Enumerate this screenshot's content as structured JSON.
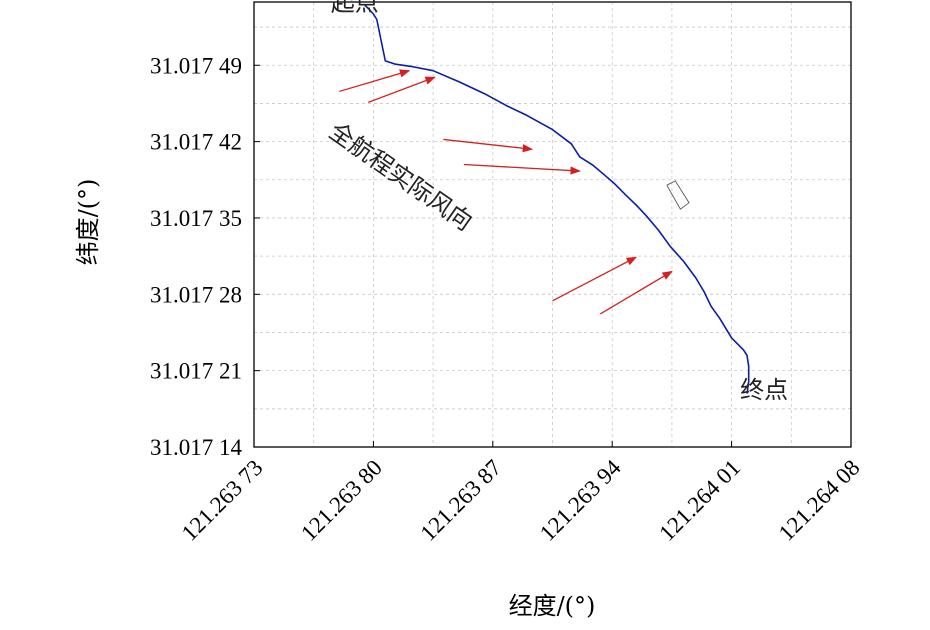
{
  "chart_data": {
    "type": "line",
    "title": "",
    "xlabel": "经度/(°)",
    "ylabel": "纬度/(°)",
    "x_ticks": [
      {
        "value": 121.26373,
        "label": "121.263 73"
      },
      {
        "value": 121.2638,
        "label": "121.263 80"
      },
      {
        "value": 121.26387,
        "label": "121.263 87"
      },
      {
        "value": 121.26394,
        "label": "121.263 94"
      },
      {
        "value": 121.26401,
        "label": "121.264 01"
      },
      {
        "value": 121.26408,
        "label": "121.264 08"
      }
    ],
    "y_ticks": [
      {
        "value": 31.01714,
        "label": "31.017 14"
      },
      {
        "value": 31.01721,
        "label": "31.017 21"
      },
      {
        "value": 31.01728,
        "label": "31.017 28"
      },
      {
        "value": 31.01735,
        "label": "31.017 35"
      },
      {
        "value": 31.01742,
        "label": "31.017 42"
      },
      {
        "value": 31.01749,
        "label": "31.017 49"
      }
    ],
    "xlim": [
      121.26373,
      121.26408
    ],
    "ylim": [
      31.01714,
      31.017548
    ],
    "grid": true,
    "series": [
      {
        "color": "#0a1ea8",
        "x": [
          121.263795,
          121.263797,
          121.2638,
          121.263802,
          121.263807,
          121.263813,
          121.263822,
          121.263835,
          121.26385,
          121.263865,
          121.263878,
          121.26389,
          121.263905,
          121.263916,
          121.263921,
          121.263925,
          121.263929,
          121.263935,
          121.263941,
          121.263948,
          121.263954,
          121.26396,
          121.263967,
          121.263974,
          121.263982,
          121.263989,
          121.263994,
          121.263998,
          121.264003,
          121.26401,
          121.264017,
          121.264019,
          121.26402,
          121.26402,
          121.264019
        ],
        "y": [
          31.017545,
          31.017542,
          31.017537,
          31.017532,
          31.017494,
          31.017491,
          31.017489,
          31.017485,
          31.017475,
          31.017464,
          31.017453,
          31.017444,
          31.017431,
          31.017418,
          31.017406,
          31.017402,
          31.017398,
          31.01739,
          31.017382,
          31.017371,
          31.017362,
          31.017352,
          31.017339,
          31.017324,
          31.01731,
          31.017295,
          31.017282,
          31.017269,
          31.017258,
          31.01724,
          31.017229,
          31.017224,
          31.017214,
          31.0172,
          31.017189
        ]
      }
    ],
    "wind_arrows": {
      "color": "#d62020",
      "segments": [
        {
          "x1": 121.26378,
          "y1": 31.017466,
          "x2": 121.263821,
          "y2": 31.017485
        },
        {
          "x1": 121.263797,
          "y1": 31.017456,
          "x2": 121.263836,
          "y2": 31.017479
        },
        {
          "x1": 121.263841,
          "y1": 31.017422,
          "x2": 121.263893,
          "y2": 31.017413
        },
        {
          "x1": 121.263853,
          "y1": 31.017399,
          "x2": 121.263921,
          "y2": 31.017393
        },
        {
          "x1": 121.263905,
          "y1": 31.017274,
          "x2": 121.263954,
          "y2": 31.017314
        },
        {
          "x1": 121.263933,
          "y1": 31.017262,
          "x2": 121.263975,
          "y2": 31.017301
        }
      ]
    },
    "annotations": [
      {
        "text": "起点",
        "x": 121.263775,
        "y": 31.01754
      },
      {
        "text": "终点",
        "x": 121.264015,
        "y": 31.017185
      },
      {
        "text": "全航程实际风向",
        "x": 121.263773,
        "y": 31.017426
      }
    ],
    "ship_outline": {
      "color": "#555555",
      "x": [
        121.263972,
        121.263977,
        121.263985,
        121.26398,
        121.263972
      ],
      "y": [
        31.01738,
        31.017384,
        31.017364,
        31.017358,
        31.01738
      ]
    }
  }
}
